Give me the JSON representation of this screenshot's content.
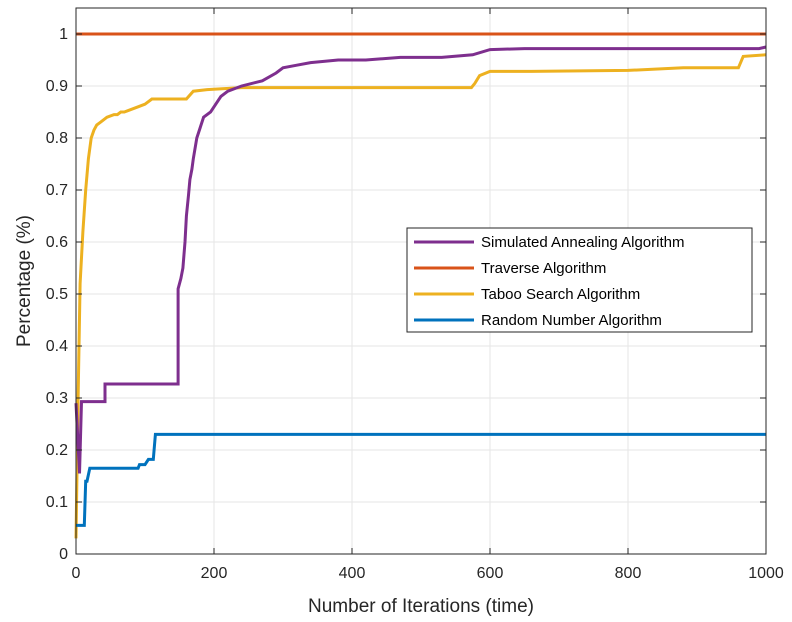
{
  "chart_data": {
    "type": "line",
    "title": "",
    "xlabel": "Number of Iterations (time)",
    "ylabel": "Percentage (%)",
    "xlim": [
      0,
      1000
    ],
    "ylim": [
      0,
      1.05
    ],
    "xticks": [
      0,
      200,
      400,
      600,
      800,
      1000
    ],
    "yticks": [
      0,
      0.1,
      0.2,
      0.3,
      0.4,
      0.5,
      0.6,
      0.7,
      0.8,
      0.9,
      1
    ],
    "xtick_labels": [
      "0",
      "200",
      "400",
      "600",
      "800",
      "1000"
    ],
    "ytick_labels": [
      "0",
      "0.1",
      "0.2",
      "0.3",
      "0.4",
      "0.5",
      "0.6",
      "0.7",
      "0.8",
      "0.9",
      "1"
    ],
    "grid": true,
    "legend_position": "right-middle",
    "series": [
      {
        "name": "Simulated Annealing Algorithm",
        "color": "#7E2F8E",
        "x": [
          0,
          5,
          8,
          42,
          42,
          148,
          148,
          152,
          155,
          158,
          160,
          163,
          165,
          168,
          170,
          175,
          180,
          185,
          195,
          200,
          210,
          220,
          240,
          270,
          290,
          300,
          320,
          340,
          380,
          420,
          470,
          530,
          575,
          600,
          650,
          800,
          900,
          990,
          1000
        ],
        "y": [
          0.29,
          0.155,
          0.293,
          0.293,
          0.327,
          0.327,
          0.51,
          0.53,
          0.55,
          0.6,
          0.65,
          0.69,
          0.72,
          0.74,
          0.76,
          0.8,
          0.82,
          0.84,
          0.85,
          0.86,
          0.88,
          0.89,
          0.9,
          0.91,
          0.925,
          0.935,
          0.94,
          0.945,
          0.95,
          0.95,
          0.955,
          0.955,
          0.96,
          0.97,
          0.972,
          0.972,
          0.972,
          0.972,
          0.975
        ]
      },
      {
        "name": "Traverse Algorithm",
        "color": "#D95319",
        "x": [
          0,
          1000
        ],
        "y": [
          1,
          1
        ]
      },
      {
        "name": "Taboo Search Algorithm",
        "color": "#EDB120",
        "x": [
          0,
          3,
          6,
          10,
          14,
          18,
          22,
          26,
          30,
          35,
          40,
          45,
          55,
          60,
          65,
          70,
          90,
          100,
          110,
          130,
          160,
          170,
          190,
          240,
          500,
          573,
          578,
          585,
          600,
          660,
          800,
          880,
          960,
          967,
          1000
        ],
        "y": [
          0.03,
          0.3,
          0.52,
          0.62,
          0.7,
          0.76,
          0.8,
          0.815,
          0.825,
          0.83,
          0.835,
          0.84,
          0.845,
          0.845,
          0.85,
          0.85,
          0.86,
          0.865,
          0.875,
          0.875,
          0.875,
          0.89,
          0.893,
          0.897,
          0.897,
          0.897,
          0.905,
          0.92,
          0.928,
          0.928,
          0.93,
          0.935,
          0.935,
          0.957,
          0.96
        ]
      },
      {
        "name": "Random Number Algorithm",
        "color": "#0072BD",
        "x": [
          0,
          1,
          12,
          14,
          16,
          20,
          90,
          92,
          100,
          105,
          112,
          115,
          118,
          1000
        ],
        "y": [
          0.055,
          0.055,
          0.055,
          0.14,
          0.14,
          0.165,
          0.165,
          0.172,
          0.172,
          0.182,
          0.182,
          0.23,
          0.23,
          0.23
        ]
      }
    ]
  }
}
